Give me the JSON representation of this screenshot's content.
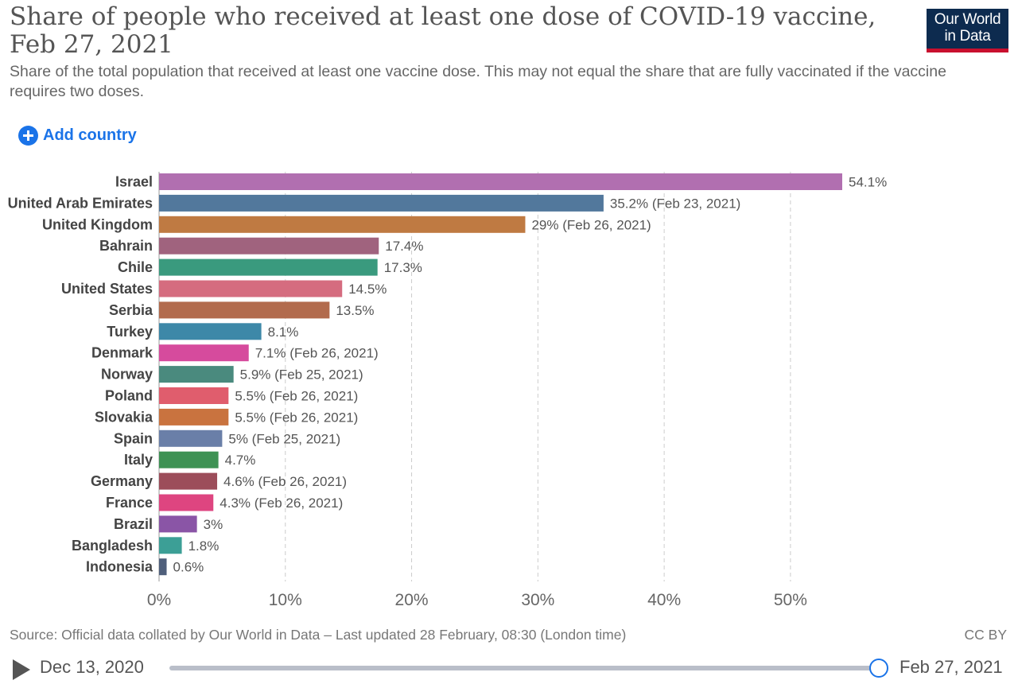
{
  "header": {
    "title": "Share of people who received at least one dose of COVID-19 vaccine, Feb 27, 2021",
    "subtitle": "Share of the total population that received at least one vaccine dose. This may not equal the share that are fully vaccinated if the vaccine requires two doses.",
    "logo_line1": "Our World",
    "logo_line2": "in Data"
  },
  "controls": {
    "add_country_label": "Add country"
  },
  "chart_data": {
    "type": "bar",
    "orientation": "horizontal",
    "categories": [
      "Israel",
      "United Arab Emirates",
      "United Kingdom",
      "Bahrain",
      "Chile",
      "United States",
      "Serbia",
      "Turkey",
      "Denmark",
      "Norway",
      "Poland",
      "Slovakia",
      "Spain",
      "Italy",
      "Germany",
      "France",
      "Brazil",
      "Bangladesh",
      "Indonesia"
    ],
    "values": [
      54.1,
      35.2,
      29,
      17.4,
      17.3,
      14.5,
      13.5,
      8.1,
      7.1,
      5.9,
      5.5,
      5.5,
      5,
      4.7,
      4.6,
      4.3,
      3,
      1.8,
      0.6
    ],
    "value_labels": [
      "54.1%",
      "35.2% (Feb 23, 2021)",
      "29% (Feb 26, 2021)",
      "17.4%",
      "17.3%",
      "14.5%",
      "13.5%",
      "8.1%",
      "7.1% (Feb 26, 2021)",
      "5.9% (Feb 25, 2021)",
      "5.5% (Feb 26, 2021)",
      "5.5% (Feb 26, 2021)",
      "5% (Feb 25, 2021)",
      "4.7%",
      "4.6% (Feb 26, 2021)",
      "4.3% (Feb 26, 2021)",
      "3%",
      "1.8%",
      "0.6%"
    ],
    "colors": [
      "#b16fb0",
      "#52789c",
      "#bf7a42",
      "#a0637e",
      "#3a9a7e",
      "#d56c7f",
      "#b26b4d",
      "#3d88a8",
      "#d64b9d",
      "#4a8a7e",
      "#e05d6d",
      "#c9733f",
      "#6a7fa8",
      "#3e9254",
      "#9c4d5a",
      "#de4580",
      "#8a55a6",
      "#3c9f96",
      "#4f5f7b"
    ],
    "xlim": [
      0,
      54.1
    ],
    "xticks": [
      0,
      10,
      20,
      30,
      40,
      50
    ],
    "xtick_labels": [
      "0%",
      "10%",
      "20%",
      "30%",
      "40%",
      "50%"
    ],
    "grid": true
  },
  "footer": {
    "source": "Source: Official data collated by Our World in Data – Last updated 28 February, 08:30 (London time)",
    "license": "CC BY"
  },
  "timeline": {
    "start_label": "Dec 13, 2020",
    "end_label": "Feb 27, 2021",
    "position": 1
  }
}
